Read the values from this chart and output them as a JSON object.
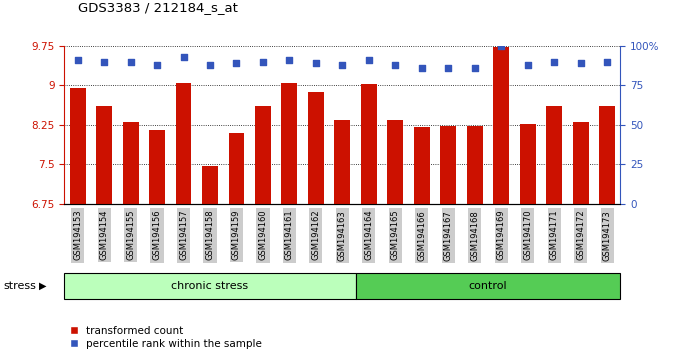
{
  "title": "GDS3383 / 212184_s_at",
  "samples": [
    "GSM194153",
    "GSM194154",
    "GSM194155",
    "GSM194156",
    "GSM194157",
    "GSM194158",
    "GSM194159",
    "GSM194160",
    "GSM194161",
    "GSM194162",
    "GSM194163",
    "GSM194164",
    "GSM194165",
    "GSM194166",
    "GSM194167",
    "GSM194168",
    "GSM194169",
    "GSM194170",
    "GSM194171",
    "GSM194172",
    "GSM194173"
  ],
  "bar_values": [
    8.95,
    8.6,
    8.3,
    8.15,
    9.05,
    7.47,
    8.1,
    8.6,
    9.04,
    8.88,
    8.35,
    9.02,
    8.35,
    8.2,
    8.22,
    8.22,
    9.73,
    8.27,
    8.6,
    8.3,
    8.6
  ],
  "dot_values": [
    91,
    90,
    90,
    88,
    93,
    88,
    89,
    90,
    91,
    89,
    88,
    91,
    88,
    86,
    86,
    86,
    100,
    88,
    90,
    89,
    90
  ],
  "bar_color": "#cc1100",
  "dot_color": "#3355bb",
  "ymin": 6.75,
  "ymax": 9.75,
  "yticks": [
    6.75,
    7.5,
    8.25,
    9.0,
    9.75
  ],
  "ytick_labels": [
    "6.75",
    "7.5",
    "8.25",
    "9",
    "9.75"
  ],
  "right_yticks": [
    0,
    25,
    50,
    75,
    100
  ],
  "right_ytick_labels": [
    "0",
    "25",
    "50",
    "75",
    "100%"
  ],
  "chronic_stress_count": 11,
  "control_count": 10,
  "group_label_chronic": "chronic stress",
  "group_label_control": "control",
  "stress_label": "stress",
  "legend_bar": "transformed count",
  "legend_dot": "percentile rank within the sample",
  "chronic_color": "#bbffbb",
  "control_color": "#55cc55",
  "bar_width": 0.6,
  "grid_lines": [
    7.5,
    8.25,
    9.0,
    9.75
  ],
  "tick_bg_color": "#cccccc"
}
